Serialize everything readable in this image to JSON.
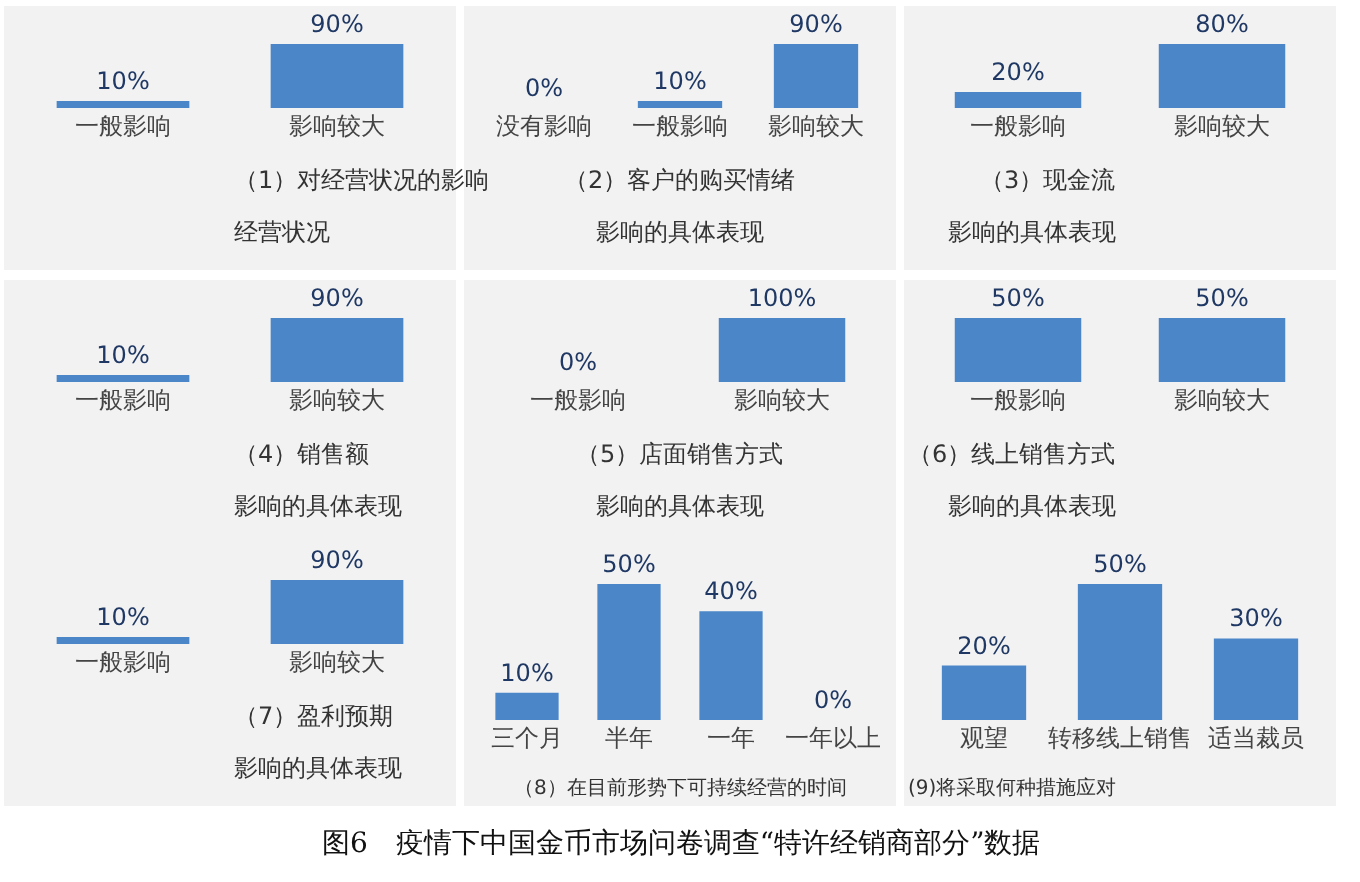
{
  "chart_data": [
    {
      "type": "bar",
      "title": "（1）对经营状况的影响",
      "subtitle": "经营状况",
      "categories": [
        "一般影响",
        "影响较大"
      ],
      "values": [
        10,
        90
      ],
      "value_labels": [
        "10%",
        "90%"
      ],
      "color": "#4a86c8"
    },
    {
      "type": "bar",
      "title": "（2）客户的购买情绪",
      "subtitle": "影响的具体表现",
      "categories": [
        "没有影响",
        "一般影响",
        "影响较大"
      ],
      "values": [
        0,
        10,
        90
      ],
      "value_labels": [
        "0%",
        "10%",
        "90%"
      ],
      "color": "#4a86c8"
    },
    {
      "type": "bar",
      "title": "（3）现金流",
      "subtitle": "影响的具体表现",
      "categories": [
        "一般影响",
        "影响较大"
      ],
      "values": [
        20,
        80
      ],
      "value_labels": [
        "20%",
        "80%"
      ],
      "color": "#4a86c8"
    },
    {
      "type": "bar",
      "title": "（4）销售额",
      "subtitle": "影响的具体表现",
      "categories": [
        "一般影响",
        "影响较大"
      ],
      "values": [
        10,
        90
      ],
      "value_labels": [
        "10%",
        "90%"
      ],
      "color": "#4a86c8"
    },
    {
      "type": "bar",
      "title": "（5）店面销售方式",
      "subtitle": "影响的具体表现",
      "categories": [
        "一般影响",
        "影响较大"
      ],
      "values": [
        0,
        100
      ],
      "value_labels": [
        "0%",
        "100%"
      ],
      "color": "#4a86c8"
    },
    {
      "type": "bar",
      "title": "（6）线上销售方式",
      "subtitle": "影响的具体表现",
      "categories": [
        "一般影响",
        "影响较大"
      ],
      "values": [
        50,
        50
      ],
      "value_labels": [
        "50%",
        "50%"
      ],
      "color": "#4a86c8"
    },
    {
      "type": "bar",
      "title": "（7）盈利预期",
      "subtitle": "影响的具体表现",
      "categories": [
        "一般影响",
        "影响较大"
      ],
      "values": [
        10,
        90
      ],
      "value_labels": [
        "10%",
        "90%"
      ],
      "color": "#4a86c8"
    },
    {
      "type": "bar",
      "title": "（8）在目前形势下可持续经营的时间",
      "categories": [
        "三个月",
        "半年",
        "一年",
        "一年以上"
      ],
      "values": [
        10,
        50,
        40,
        0
      ],
      "value_labels": [
        "10%",
        "50%",
        "40%",
        "0%"
      ],
      "color": "#4a86c8"
    },
    {
      "type": "bar",
      "title": "(9)将采取何种措施应对",
      "categories": [
        "观望",
        "转移线上销售",
        "适当裁员"
      ],
      "values": [
        20,
        50,
        30
      ],
      "value_labels": [
        "20%",
        "50%",
        "30%"
      ],
      "color": "#4a86c8",
      "annotations": [
        "图6　疫情下中国金币市场问卷调查“特许经销商部分”数据"
      ]
    }
  ]
}
